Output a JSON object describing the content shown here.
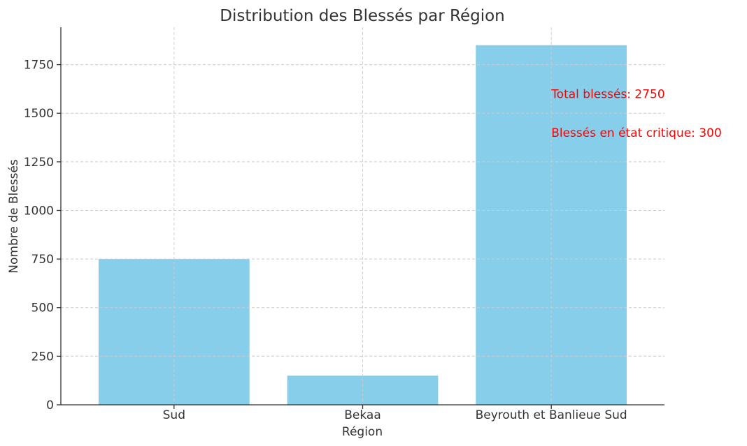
{
  "chart_data": {
    "type": "bar",
    "title": "Distribution des Blessés par Région",
    "xlabel": "Région",
    "ylabel": "Nombre de Blessés",
    "categories": [
      "Sud",
      "Bekaa",
      "Beyrouth et Banlieue Sud"
    ],
    "values": [
      750,
      150,
      1850
    ],
    "ylim": [
      0,
      1942.5
    ],
    "yticks": [
      0,
      250,
      500,
      750,
      1000,
      1250,
      1500,
      1750
    ],
    "grid": true,
    "bar_color": "#87ceeb",
    "annotations": [
      {
        "text": "Total blessés: 2750",
        "x": 2,
        "y": 1600,
        "color": "#ff0000"
      },
      {
        "text": "Blessés en état critique: 300",
        "x": 2,
        "y": 1400,
        "color": "#ff0000"
      }
    ]
  }
}
